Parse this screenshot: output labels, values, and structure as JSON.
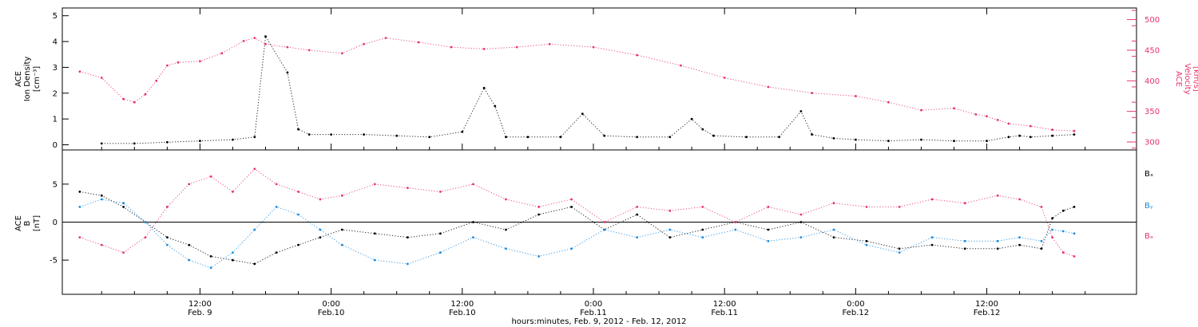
{
  "colors": {
    "black": "#000000",
    "pink": "#e8346a",
    "blue": "#1a8be0"
  },
  "chart_data": [
    {
      "type": "scatter",
      "panel": "top",
      "left_axis_label": [
        "ACE",
        "Ion Density",
        "[cm⁻³]"
      ],
      "right_axis_label": [
        "ACE",
        "Velocity",
        "[km/s]"
      ],
      "left_ylim": [
        -0.2,
        5.3
      ],
      "left_yticks": [
        "0",
        "1",
        "2",
        "3",
        "4",
        "5"
      ],
      "right_ylim": [
        287,
        519
      ],
      "right_yticks": [
        "300",
        "350",
        "400",
        "450",
        "500"
      ],
      "x_unit": "hours since 00:00 Feb. 9, 2012",
      "series": [
        {
          "color": "black",
          "axis": "left",
          "x": [
            3,
            6,
            9,
            12,
            15,
            17,
            18,
            20,
            21,
            22,
            24,
            27,
            30,
            33,
            36,
            38,
            39,
            40,
            42,
            45,
            47,
            49,
            52,
            55,
            57,
            58,
            59,
            62,
            65,
            67,
            68,
            70,
            72,
            75,
            78,
            81,
            84,
            86,
            87,
            88,
            90,
            92
          ],
          "y": [
            0.05,
            0.05,
            0.1,
            0.15,
            0.2,
            0.3,
            4.2,
            2.8,
            0.6,
            0.4,
            0.4,
            0.4,
            0.35,
            0.3,
            0.5,
            2.2,
            1.5,
            0.3,
            0.3,
            0.3,
            1.2,
            0.35,
            0.3,
            0.3,
            1.0,
            0.6,
            0.35,
            0.3,
            0.3,
            1.3,
            0.4,
            0.25,
            0.2,
            0.15,
            0.2,
            0.15,
            0.15,
            0.3,
            0.35,
            0.3,
            0.35,
            0.4
          ]
        },
        {
          "color": "pink",
          "axis": "right",
          "x": [
            1,
            3,
            5,
            6,
            7,
            8,
            9,
            10,
            12,
            14,
            16,
            17,
            18,
            20,
            22,
            25,
            27,
            29,
            32,
            35,
            38,
            41,
            44,
            48,
            52,
            56,
            60,
            64,
            68,
            72,
            75,
            78,
            81,
            83,
            84,
            85,
            86,
            88,
            90,
            92
          ],
          "y": [
            415,
            405,
            370,
            365,
            378,
            400,
            425,
            430,
            432,
            445,
            465,
            470,
            460,
            455,
            450,
            445,
            460,
            470,
            463,
            455,
            452,
            455,
            460,
            455,
            442,
            425,
            405,
            390,
            380,
            375,
            365,
            352,
            355,
            345,
            342,
            336,
            330,
            326,
            320,
            318
          ]
        }
      ]
    },
    {
      "type": "scatter",
      "panel": "bottom",
      "left_axis_label": [
        "ACE",
        "B",
        "[nT]"
      ],
      "ylim": [
        -9.5,
        9.5
      ],
      "yticks": [
        "-5",
        "0",
        "5"
      ],
      "zero_line": true,
      "legend": [
        "Bₓ",
        "Bᵧ",
        "Bₔ"
      ],
      "legend_position": "right",
      "series": [
        {
          "name": "Bx",
          "color": "black",
          "x": [
            1,
            3,
            5,
            7,
            9,
            11,
            13,
            15,
            17,
            19,
            21,
            23,
            25,
            28,
            31,
            34,
            37,
            40,
            43,
            46,
            49,
            52,
            55,
            58,
            61,
            64,
            67,
            70,
            73,
            76,
            79,
            82,
            85,
            87,
            89,
            90,
            91,
            92
          ],
          "y": [
            4,
            3.5,
            2,
            0,
            -2,
            -3,
            -4.5,
            -5,
            -5.5,
            -4,
            -3,
            -2,
            -1,
            -1.5,
            -2,
            -1.5,
            0,
            -1,
            1,
            2,
            -1,
            1,
            -2,
            -1,
            0,
            -1,
            0,
            -2,
            -2.5,
            -3.5,
            -3,
            -3.5,
            -3.5,
            -3,
            -3.5,
            0.5,
            1.5,
            2
          ]
        },
        {
          "name": "By",
          "color": "blue",
          "x": [
            1,
            3,
            5,
            7,
            9,
            11,
            13,
            15,
            17,
            19,
            21,
            23,
            25,
            28,
            31,
            34,
            37,
            40,
            43,
            46,
            49,
            52,
            55,
            58,
            61,
            64,
            67,
            70,
            73,
            76,
            79,
            82,
            85,
            87,
            89,
            90,
            91,
            92
          ],
          "y": [
            2,
            3,
            2.5,
            0,
            -3,
            -5,
            -6,
            -4,
            -1,
            2,
            1,
            -1,
            -3,
            -5,
            -5.5,
            -4,
            -2,
            -3.5,
            -4.5,
            -3.5,
            -1,
            -2,
            -1,
            -2,
            -1,
            -2.5,
            -2,
            -1,
            -3,
            -4,
            -2,
            -2.5,
            -2.5,
            -2,
            -2.5,
            -1,
            -1.2,
            -1.5
          ]
        },
        {
          "name": "Bz",
          "color": "pink",
          "x": [
            1,
            3,
            5,
            7,
            9,
            11,
            13,
            15,
            17,
            19,
            21,
            23,
            25,
            28,
            31,
            34,
            37,
            40,
            43,
            46,
            49,
            52,
            55,
            58,
            61,
            64,
            67,
            70,
            73,
            76,
            79,
            82,
            85,
            87,
            89,
            90,
            91,
            92
          ],
          "y": [
            -2,
            -3,
            -4,
            -2,
            2,
            5,
            6,
            4,
            7,
            5,
            4,
            3,
            3.5,
            5,
            4.5,
            4,
            5,
            3,
            2,
            3,
            0,
            2,
            1.5,
            2,
            0,
            2,
            1,
            2.5,
            2,
            2,
            3,
            2.5,
            3.5,
            3,
            2,
            -2,
            -4,
            -4.5
          ]
        }
      ]
    }
  ],
  "xaxis": {
    "xlim": [
      -0.6,
      97.7
    ],
    "ticks": [
      {
        "x": 12,
        "time": "12:00",
        "date": "Feb. 9"
      },
      {
        "x": 24,
        "time": "0:00",
        "date": "Feb.10"
      },
      {
        "x": 36,
        "time": "12:00",
        "date": "Feb.10"
      },
      {
        "x": 48,
        "time": "0:00",
        "date": "Feb.11"
      },
      {
        "x": 60,
        "time": "12:00",
        "date": "Feb.11"
      },
      {
        "x": 72,
        "time": "0:00",
        "date": "Feb.12"
      },
      {
        "x": 84,
        "time": "12:00",
        "date": "Feb.12"
      }
    ],
    "label": "hours:minutes, Feb.  9, 2012 - Feb. 12, 2012"
  }
}
